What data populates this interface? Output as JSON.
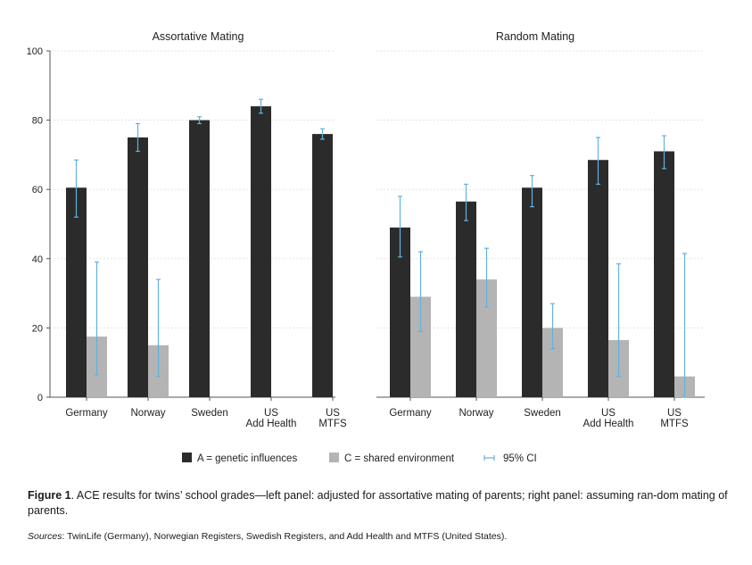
{
  "chart_data": [
    {
      "type": "bar",
      "title": "Assortative Mating",
      "ylim": [
        0,
        100
      ],
      "yticks": [
        0,
        20,
        40,
        60,
        80,
        100
      ],
      "categories": [
        [
          "Germany"
        ],
        [
          "Norway"
        ],
        [
          "Sweden"
        ],
        [
          "US",
          "Add Health"
        ],
        [
          "US",
          "MTFS"
        ]
      ],
      "series": [
        {
          "name": "A = genetic influences",
          "values": [
            60.5,
            75,
            80,
            84,
            76
          ],
          "ci_low": [
            52,
            71,
            79,
            82,
            74.5
          ],
          "ci_high": [
            68.5,
            79,
            81,
            86,
            77.5
          ]
        },
        {
          "name": "C = shared environment",
          "values": [
            17.5,
            15,
            null,
            null,
            null
          ],
          "ci_low": [
            6.5,
            6,
            null,
            null,
            null
          ],
          "ci_high": [
            39,
            34,
            null,
            null,
            null
          ]
        }
      ]
    },
    {
      "type": "bar",
      "title": "Random Mating",
      "ylim": [
        0,
        100
      ],
      "yticks": [
        0,
        20,
        40,
        60,
        80,
        100
      ],
      "categories": [
        [
          "Germany"
        ],
        [
          "Norway"
        ],
        [
          "Sweden"
        ],
        [
          "US",
          "Add Health"
        ],
        [
          "US",
          "MTFS"
        ]
      ],
      "series": [
        {
          "name": "A = genetic influences",
          "values": [
            49,
            56.5,
            60.5,
            68.5,
            71
          ],
          "ci_low": [
            40.5,
            51,
            55,
            61.5,
            66
          ],
          "ci_high": [
            58,
            61.5,
            64,
            75,
            75.5
          ]
        },
        {
          "name": "C = shared environment",
          "values": [
            29,
            34,
            20,
            16.5,
            6
          ],
          "ci_low": [
            19,
            26,
            14,
            6,
            0
          ],
          "ci_high": [
            42,
            43,
            27,
            38.5,
            41.5
          ]
        }
      ]
    }
  ],
  "legend": {
    "genetic": "A = genetic influences",
    "shared": "C = shared environment",
    "ci": "95% CI"
  },
  "colors": {
    "genetic": "#2b2b2b",
    "shared": "#b4b4b4",
    "ci": "#62b1de",
    "grid": "#e3e3e3",
    "axis": "#555555"
  },
  "caption": {
    "label": "Figure 1",
    "text": ". ACE results for twins’ school grades—left panel: adjusted for assortative mating of parents; right panel: assuming ran-dom mating of parents."
  },
  "sources": {
    "label": "Sources",
    "text": ": TwinLife (Germany), Norwegian Registers, Swedish Registers, and Add Health and MTFS (United States)."
  }
}
